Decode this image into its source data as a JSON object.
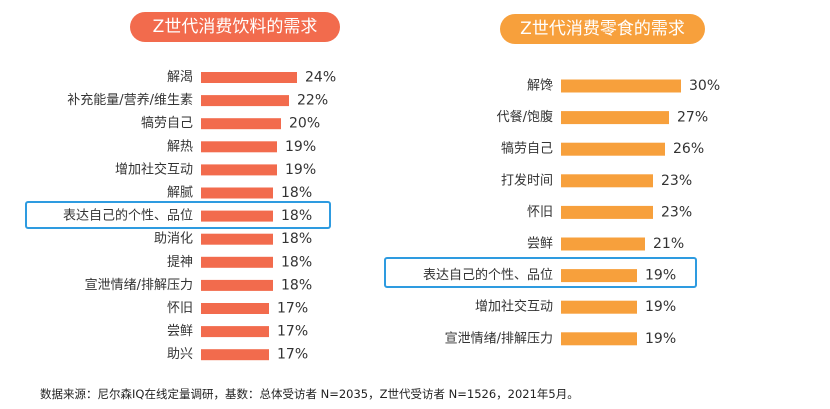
{
  "chart_data": [
    {
      "type": "bar",
      "orientation": "horizontal",
      "title": "Z世代消费饮料的需求",
      "color": "#F26B4D",
      "categories": [
        "解渴",
        "补充能量/营养/维生素",
        "犒劳自己",
        "解热",
        "增加社交互动",
        "解腻",
        "表达自己的个性、品位",
        "助消化",
        "提神",
        "宣泄情绪/排解压力",
        "怀旧",
        "尝鲜",
        "助兴"
      ],
      "values": [
        24,
        22,
        20,
        19,
        19,
        18,
        18,
        18,
        18,
        18,
        17,
        17,
        17
      ],
      "value_labels": [
        "24%",
        "22%",
        "20%",
        "19%",
        "19%",
        "18%",
        "18%",
        "18%",
        "18%",
        "18%",
        "17%",
        "17%",
        "17%"
      ],
      "highlighted_category": "表达自己的个性、品位"
    },
    {
      "type": "bar",
      "orientation": "horizontal",
      "title": "Z世代消费零食的需求",
      "color": "#F7A03C",
      "categories": [
        "解馋",
        "代餐/饱腹",
        "犒劳自己",
        "打发时间",
        "怀旧",
        "尝鲜",
        "表达自己的个性、品位",
        "增加社交互动",
        "宣泄情绪/排解压力"
      ],
      "values": [
        30,
        27,
        26,
        23,
        23,
        21,
        19,
        19,
        19
      ],
      "value_labels": [
        "30%",
        "27%",
        "26%",
        "23%",
        "23%",
        "21%",
        "19%",
        "19%",
        "19%"
      ],
      "highlighted_category": "表达自己的个性、品位"
    }
  ],
  "source_note": "数据来源：尼尔森IQ在线定量调研，基数：总体受访者 N=2035，Z世代受访者 N=1526，2021年5月。",
  "highlight_color": "#2E9BE0"
}
